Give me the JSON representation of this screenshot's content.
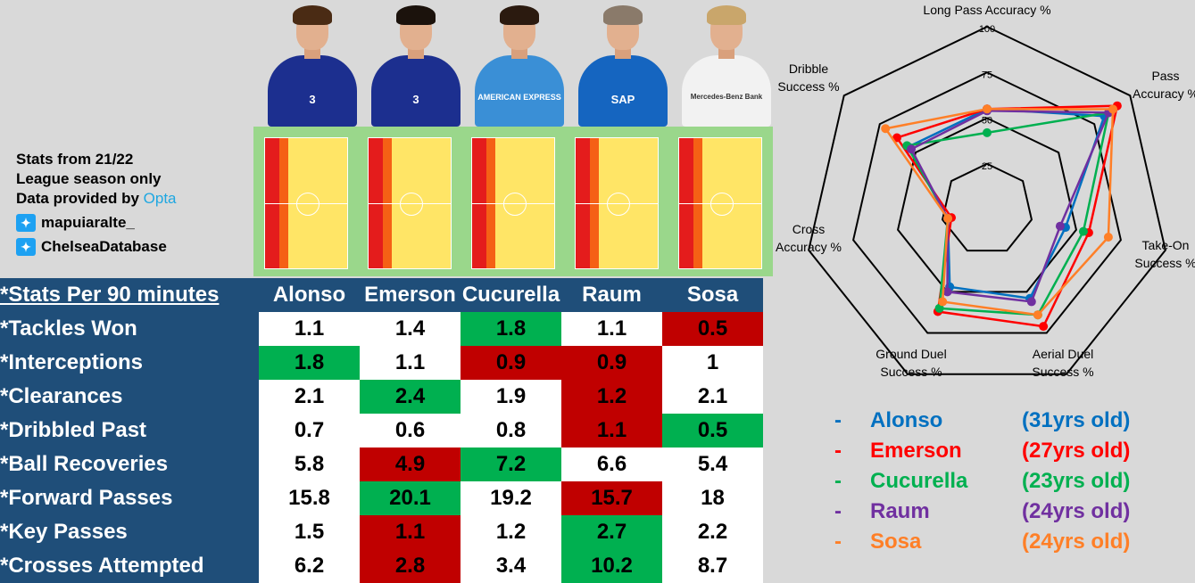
{
  "info": {
    "line1": "Stats from 21/22",
    "line2": "League season only",
    "line3_prefix": "Data provided by ",
    "line3_brand": "Opta",
    "twitter1": "mapuiaralte_",
    "twitter2": "ChelseaDatabase"
  },
  "players": [
    {
      "name": "Alonso",
      "age": "(31yrs old)",
      "shirt": "#1c2f8f",
      "sponsor": "3",
      "hair": "#4a2b14"
    },
    {
      "name": "Emerson",
      "age": "(27yrs old)",
      "shirt": "#1c2f8f",
      "sponsor": "3",
      "hair": "#1b120c"
    },
    {
      "name": "Cucurella",
      "age": "(23yrs old)",
      "shirt": "#3a8fd6",
      "sponsor": "AMERICAN EXPRESS",
      "hair": "#2b1a0f"
    },
    {
      "name": "Raum",
      "age": "(24yrs old)",
      "shirt": "#1565c0",
      "sponsor": "SAP",
      "hair": "#8a7a6a"
    },
    {
      "name": "Sosa",
      "age": "(24yrs old)",
      "shirt": "#f2f2f2",
      "sponsor": "Mercedes-Benz Bank",
      "hair": "#c9a66b"
    }
  ],
  "colors": {
    "Alonso": "#0070c0",
    "Emerson": "#ff0000",
    "Cucurella": "#00b050",
    "Raum": "#7030a0",
    "Sosa": "#ff7f27"
  },
  "table": {
    "header": "*Stats Per 90 minutes",
    "rows": [
      {
        "label": "*Tackles Won",
        "values": [
          "1.1",
          "1.4",
          "1.8",
          "1.1",
          "0.5"
        ],
        "fill": [
          "",
          "",
          "g",
          "",
          "r"
        ]
      },
      {
        "label": "*Interceptions",
        "values": [
          "1.8",
          "1.1",
          "0.9",
          "0.9",
          "1"
        ],
        "fill": [
          "g",
          "",
          "r",
          "r",
          ""
        ]
      },
      {
        "label": "*Clearances",
        "values": [
          "2.1",
          "2.4",
          "1.9",
          "1.2",
          "2.1"
        ],
        "fill": [
          "",
          "g",
          "",
          "r",
          ""
        ]
      },
      {
        "label": "*Dribbled Past",
        "values": [
          "0.7",
          "0.6",
          "0.8",
          "1.1",
          "0.5"
        ],
        "fill": [
          "",
          "",
          "",
          "r",
          "g"
        ]
      },
      {
        "label": "*Ball Recoveries",
        "values": [
          "5.8",
          "4.9",
          "7.2",
          "6.6",
          "5.4"
        ],
        "fill": [
          "",
          "r",
          "g",
          "",
          ""
        ]
      },
      {
        "label": "*Forward Passes",
        "values": [
          "15.8",
          "20.1",
          "19.2",
          "15.7",
          "18"
        ],
        "fill": [
          "",
          "g",
          "",
          "r",
          ""
        ]
      },
      {
        "label": "*Key Passes",
        "values": [
          "1.5",
          "1.1",
          "1.2",
          "2.7",
          "2.2"
        ],
        "fill": [
          "",
          "r",
          "",
          "g",
          ""
        ]
      },
      {
        "label": "*Crosses Attempted",
        "values": [
          "6.2",
          "2.8",
          "3.4",
          "10.2",
          "8.7"
        ],
        "fill": [
          "",
          "r",
          "",
          "g",
          ""
        ]
      }
    ]
  },
  "chart_data": {
    "type": "radar",
    "axes": [
      "Long Pass Accuracy %",
      "Pass Accuracy %",
      "Take-On Success %",
      "Aerial Duel Success %",
      "Ground Duel Success %",
      "Cross Accuracy %",
      "Dribble Success %"
    ],
    "axis_label_lines": [
      [
        "Long Pass Accuracy %"
      ],
      [
        "Pass",
        "Accuracy %"
      ],
      [
        "Take-On",
        "Success %"
      ],
      [
        "Aerial Duel",
        "Success %"
      ],
      [
        "Ground Duel",
        "Success %"
      ],
      [
        "Cross",
        "Accuracy %"
      ],
      [
        "Dribble",
        "Success %"
      ]
    ],
    "rlim": [
      0,
      100
    ],
    "ticks": [
      25,
      50,
      75,
      100
    ],
    "tick_labels": [
      "25",
      "50",
      "75",
      "100"
    ],
    "series": [
      {
        "name": "Alonso",
        "values": [
          55,
          82,
          44,
          54,
          47,
          22,
          55
        ]
      },
      {
        "name": "Emerson",
        "values": [
          55,
          91,
          57,
          71,
          62,
          20,
          63
        ]
      },
      {
        "name": "Cucurella",
        "values": [
          42,
          85,
          54,
          64,
          60,
          22,
          56
        ]
      },
      {
        "name": "Raum",
        "values": [
          54,
          85,
          41,
          56,
          50,
          22,
          53
        ]
      },
      {
        "name": "Sosa",
        "values": [
          55,
          88,
          68,
          64,
          56,
          22,
          71
        ]
      }
    ]
  }
}
